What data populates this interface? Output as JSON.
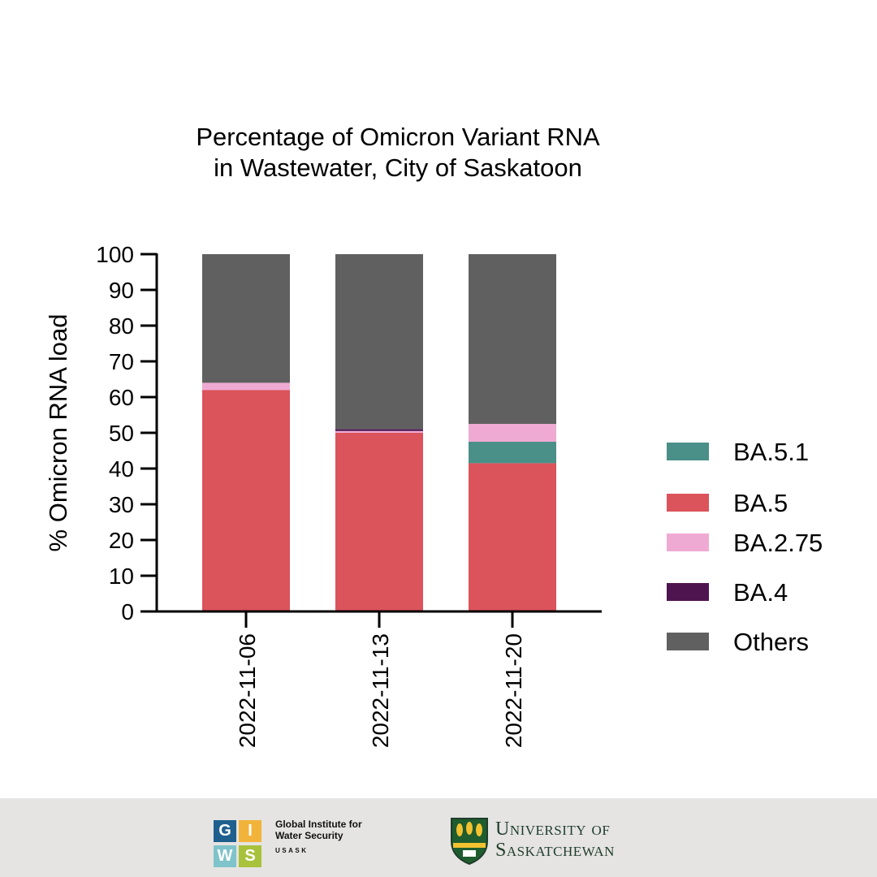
{
  "chart_data": {
    "type": "bar",
    "stacked": true,
    "title_lines": [
      "Percentage of Omicron Variant RNA",
      "in Wastewater, City of Saskatoon"
    ],
    "xlabel": "",
    "ylabel": "% Omicron RNA load",
    "ylim": [
      0,
      100
    ],
    "yticks": [
      0,
      10,
      20,
      30,
      40,
      50,
      60,
      70,
      80,
      90,
      100
    ],
    "categories": [
      "2022-11-06",
      "2022-11-13",
      "2022-11-20"
    ],
    "series": [
      {
        "name": "BA.5.1",
        "color": "#4a8f88",
        "values": [
          0,
          0,
          6
        ]
      },
      {
        "name": "BA.5",
        "color": "#db535b",
        "values": [
          62,
          50,
          41.5
        ]
      },
      {
        "name": "BA.2.75",
        "color": "#efaad3",
        "values": [
          2,
          0.5,
          5
        ]
      },
      {
        "name": "BA.4",
        "color": "#4e1450",
        "values": [
          0,
          0.5,
          0
        ]
      },
      {
        "name": "Others",
        "color": "#606060",
        "values": [
          36,
          49,
          47.5
        ]
      }
    ],
    "stack_order": [
      "BA.5",
      "BA.5.1",
      "BA.2.75",
      "BA.4",
      "Others"
    ],
    "legend": {
      "placement": "right",
      "order": [
        "BA.5.1",
        "BA.5",
        "BA.2.75",
        "BA.4",
        "Others"
      ]
    },
    "grid": false
  },
  "footer": {
    "giws": {
      "letters": [
        "G",
        "I",
        "W",
        "S"
      ],
      "colors": [
        "#1e5f8e",
        "#f2b33a",
        "#7fc3cb",
        "#a8c23c"
      ],
      "line1": "Global Institute for",
      "line2": "Water Security",
      "line3": "USASK"
    },
    "usask": {
      "line1": "University of",
      "line2": "Saskatchewan",
      "colors": {
        "green": "#1f5c2e",
        "gold": "#f2c230"
      }
    }
  }
}
